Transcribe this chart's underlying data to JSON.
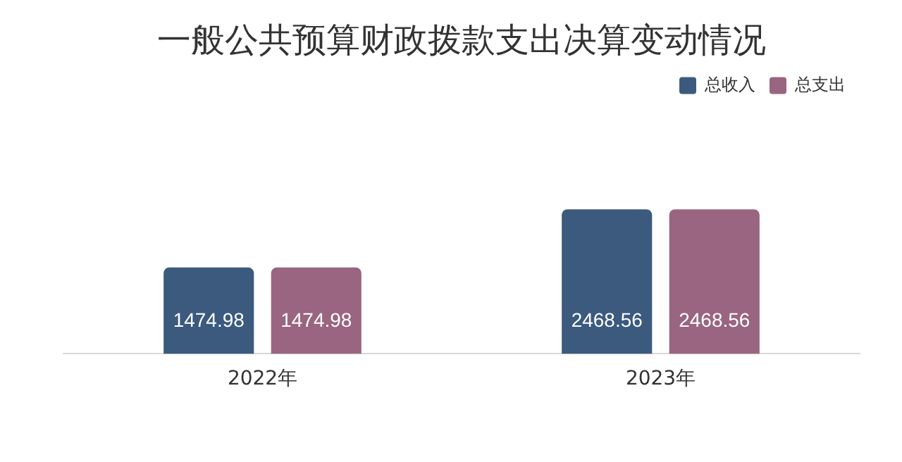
{
  "chart_data": {
    "type": "bar",
    "title": "一般公共预算财政拨款支出决算变动情况",
    "categories": [
      "2022年",
      "2023年"
    ],
    "series": [
      {
        "name": "总收入",
        "color": "#3b5a7e",
        "values": [
          1474.98,
          2468.56
        ]
      },
      {
        "name": "总支出",
        "color": "#9a6581",
        "values": [
          1474.98,
          2468.56
        ]
      }
    ],
    "data_labels": true,
    "legend": "top right",
    "grid": false,
    "tick_labels": "x"
  }
}
